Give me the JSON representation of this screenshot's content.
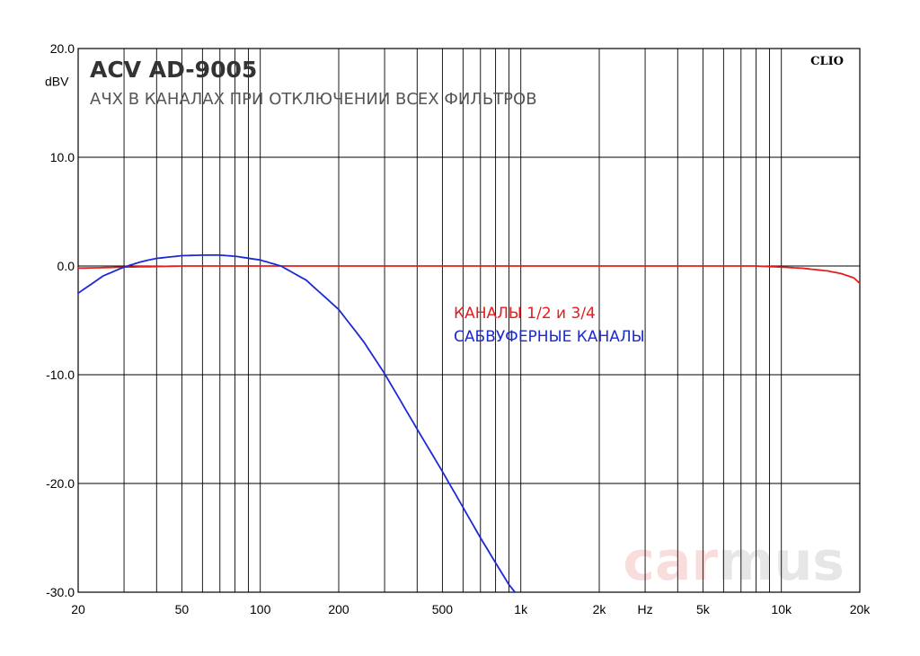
{
  "chart_data": {
    "type": "line",
    "title": "ACV AD-9005",
    "subtitle": "АЧХ В КАНАЛАХ ПРИ ОТКЛЮЧЕНИИ ВСЕХ ФИЛЬТРОВ",
    "ylabel": "dBV",
    "xlabel": "Hz",
    "brand": "CLIO",
    "watermark": {
      "left": "car",
      "right": "mus"
    },
    "x_scale": "log",
    "xlim": [
      20,
      20000
    ],
    "ylim": [
      -30,
      20
    ],
    "grid": true,
    "y_ticks": [
      20,
      10,
      0,
      -10,
      -20,
      -30
    ],
    "y_tick_labels": [
      "20.0",
      "10.0",
      "0.0",
      "-10.0",
      "-20.0",
      "-30.0"
    ],
    "x_ticks": [
      20,
      50,
      100,
      200,
      500,
      1000,
      2000,
      5000,
      10000,
      20000
    ],
    "x_tick_labels": [
      "20",
      "50",
      "100",
      "200",
      "500",
      "1k",
      "2k",
      "5k",
      "10k",
      "20k"
    ],
    "x_unit_at": 3000,
    "series": [
      {
        "name": "КАНАЛЫ 1/2 и 3/4",
        "color": "#e81c1c",
        "x": [
          20,
          25,
          30,
          40,
          50,
          70,
          100,
          200,
          500,
          1000,
          2000,
          5000,
          8000,
          10000,
          12000,
          15000,
          17000,
          19000,
          20000
        ],
        "y": [
          -0.2,
          -0.15,
          -0.1,
          -0.05,
          0,
          0,
          0,
          0,
          0,
          0,
          0,
          0,
          0,
          -0.1,
          -0.2,
          -0.45,
          -0.7,
          -1.1,
          -1.6
        ]
      },
      {
        "name": "САБВУФЕРНЫЕ КАНАЛЫ",
        "color": "#1c2ad4",
        "x": [
          20,
          25,
          30,
          35,
          40,
          50,
          60,
          70,
          80,
          100,
          120,
          150,
          200,
          250,
          300,
          400,
          500,
          600,
          700,
          800,
          900,
          950
        ],
        "y": [
          -2.5,
          -0.9,
          -0.1,
          0.4,
          0.7,
          0.95,
          1.0,
          1.0,
          0.9,
          0.55,
          0.0,
          -1.3,
          -4.0,
          -7.0,
          -9.9,
          -15.0,
          -18.9,
          -22.2,
          -25.0,
          -27.3,
          -29.3,
          -30.0
        ]
      }
    ]
  }
}
